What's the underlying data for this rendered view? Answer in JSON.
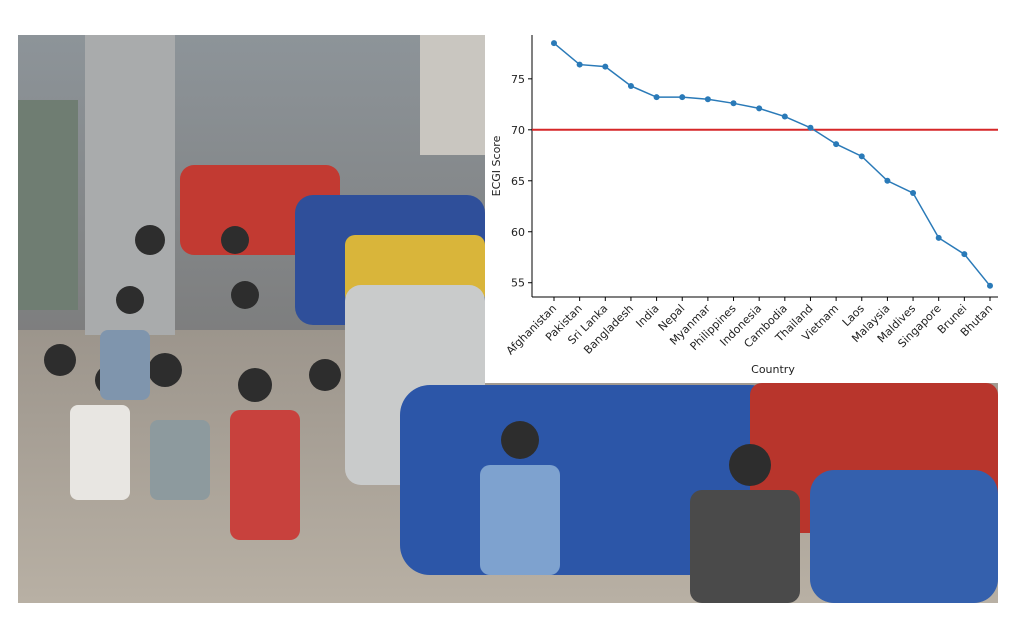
{
  "chart_data": {
    "type": "line",
    "title": null,
    "x_label": "Country",
    "y_label": "ECGI Score",
    "categories": [
      "Afghanistan",
      "Pakistan",
      "Sri Lanka",
      "Bangladesh",
      "India",
      "Nepal",
      "Myanmar",
      "Philippines",
      "Indonesia",
      "Cambodia",
      "Thailand",
      "Vietnam",
      "Laos",
      "Malaysia",
      "Maldives",
      "Singapore",
      "Brunei",
      "Bhutan"
    ],
    "values": [
      78.5,
      76.4,
      76.2,
      74.3,
      73.2,
      73.2,
      73.0,
      72.6,
      72.1,
      71.3,
      70.2,
      68.6,
      67.4,
      65.0,
      63.8,
      59.4,
      57.8,
      54.7
    ],
    "color": "#2a7ab8",
    "reference_line": {
      "value": 70,
      "color": "#d62728"
    },
    "ylim": [
      53.6,
      79.3
    ],
    "yticks": [
      55,
      60,
      65,
      70,
      75
    ],
    "grid": false
  }
}
